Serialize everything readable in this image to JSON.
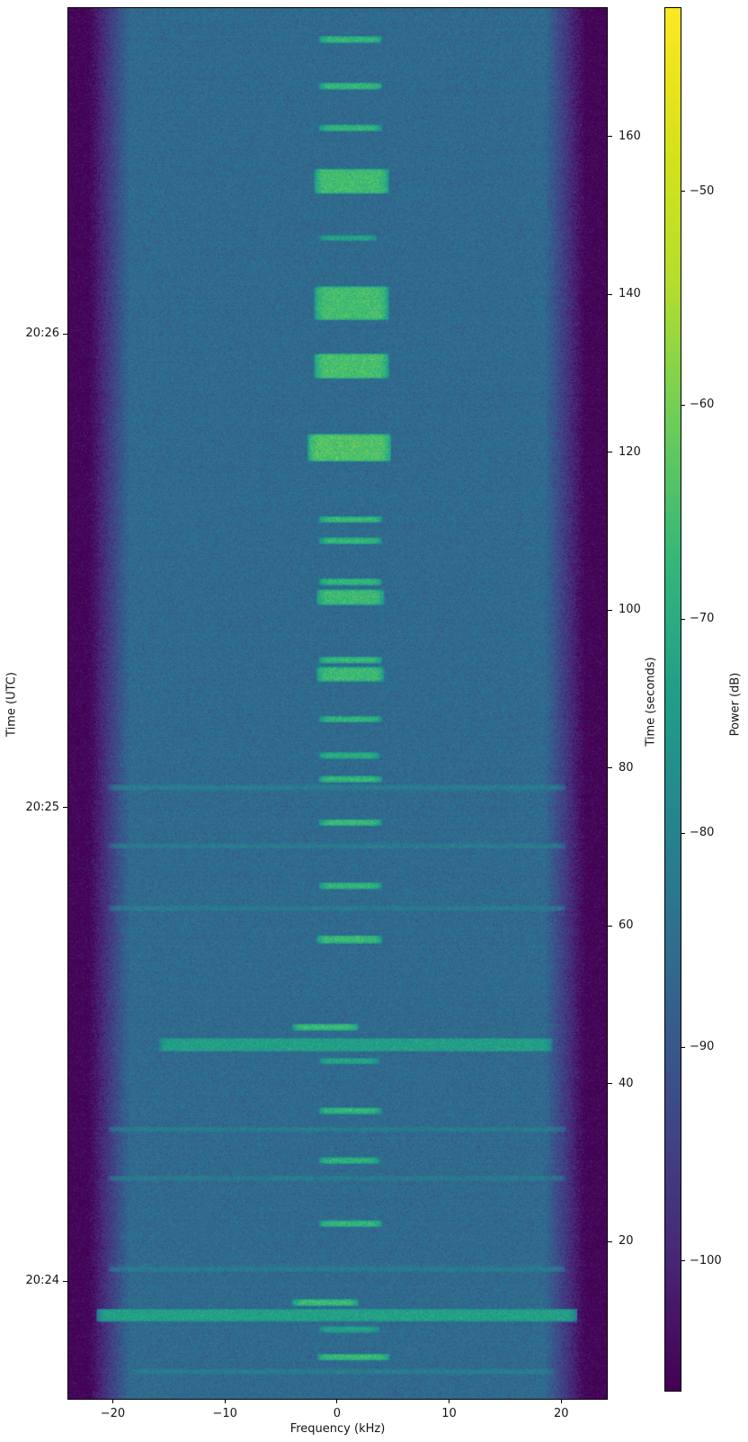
{
  "chart_data": {
    "type": "heatmap",
    "title": "",
    "xlabel": "Frequency (kHz)",
    "ylabel_left": "Time (UTC)",
    "ylabel_right": "Time (seconds)",
    "colorbar_label": "Power (dB)",
    "x_range_khz": [
      -24.05,
      24.15
    ],
    "x_ticks": [
      -20,
      -10,
      0,
      10,
      20
    ],
    "x_tick_labels": [
      "−20",
      "−10",
      "0",
      "10",
      "20"
    ],
    "t_range_seconds": [
      0,
      176.4
    ],
    "right_ticks_seconds": [
      20,
      40,
      60,
      80,
      100,
      120,
      140,
      160
    ],
    "right_tick_labels": [
      "20",
      "40",
      "60",
      "80",
      "100",
      "120",
      "140",
      "160"
    ],
    "utc_ticks": [
      {
        "label": "20:24",
        "t_seconds": 15
      },
      {
        "label": "20:25",
        "t_seconds": 75
      },
      {
        "label": "20:26",
        "t_seconds": 135
      }
    ],
    "color_scale": {
      "name": "viridis",
      "vmin_db": -106.1,
      "vmax_db": -41.4,
      "ticks_db": [
        -50,
        -60,
        -70,
        -80,
        -90,
        -100
      ],
      "tick_labels": [
        "−50",
        "−60",
        "−70",
        "−80",
        "−90",
        "−100"
      ],
      "stops": [
        "#440154",
        "#482878",
        "#3e4989",
        "#31688e",
        "#26828e",
        "#1f9e89",
        "#35b779",
        "#6dcd59",
        "#b4de2c",
        "#d8e219",
        "#fde725"
      ]
    },
    "background": {
      "noise_floor_db": -86,
      "edge_floor_db": -106,
      "rolloff_start_khz": 18.5,
      "rolloff_end_khz": 22.2,
      "noise_sigma_db": 2.4,
      "row_noise_sigma_db": 0.3
    },
    "events_format": [
      "t_start_s",
      "t_end_s",
      "f_low_khz",
      "f_high_khz",
      "power_db"
    ],
    "events": [
      [
        172.0,
        172.6,
        -1.2,
        3.6,
        -67.5
      ],
      [
        166.1,
        166.7,
        -1.2,
        3.6,
        -67.5
      ],
      [
        160.8,
        161.4,
        -1.2,
        3.6,
        -68.0
      ],
      [
        152.9,
        155.8,
        -1.6,
        4.2,
        -65.5
      ],
      [
        146.9,
        147.4,
        -1.2,
        3.2,
        -73.0
      ],
      [
        136.9,
        140.9,
        -1.6,
        4.2,
        -65.5
      ],
      [
        129.5,
        132.4,
        -1.6,
        4.2,
        -65.0
      ],
      [
        119.0,
        122.2,
        -2.2,
        4.4,
        -64.0
      ],
      [
        111.2,
        111.8,
        -1.2,
        3.6,
        -67.0
      ],
      [
        108.5,
        109.1,
        -1.2,
        3.6,
        -68.0
      ],
      [
        103.3,
        103.9,
        -1.2,
        3.6,
        -67.5
      ],
      [
        100.8,
        102.5,
        -1.4,
        3.8,
        -66.5
      ],
      [
        93.4,
        94.0,
        -1.2,
        3.6,
        -67.5
      ],
      [
        91.1,
        92.7,
        -1.4,
        3.8,
        -66.5
      ],
      [
        85.9,
        86.5,
        -1.2,
        3.6,
        -68.5
      ],
      [
        81.3,
        81.9,
        -1.2,
        3.4,
        -70.0
      ],
      [
        78.3,
        78.9,
        -1.2,
        3.6,
        -67.5
      ],
      [
        77.3,
        77.8,
        -20.0,
        20.0,
        -83.0
      ],
      [
        72.8,
        73.4,
        -1.2,
        3.6,
        -67.0
      ],
      [
        69.9,
        70.4,
        -20.0,
        20.0,
        -84.0
      ],
      [
        64.8,
        65.4,
        -1.2,
        3.6,
        -68.0
      ],
      [
        62.0,
        62.5,
        -20.0,
        20.0,
        -83.5
      ],
      [
        57.9,
        58.7,
        -1.4,
        3.6,
        -66.5
      ],
      [
        46.9,
        47.5,
        -3.6,
        1.5,
        -66.5
      ],
      [
        44.2,
        45.7,
        -15.5,
        18.8,
        -73.5
      ],
      [
        42.6,
        43.2,
        -1.2,
        3.4,
        -72.0
      ],
      [
        36.3,
        36.9,
        -1.2,
        3.6,
        -68.0
      ],
      [
        34.0,
        34.5,
        -20.0,
        20.0,
        -84.0
      ],
      [
        30.0,
        30.6,
        -1.2,
        3.4,
        -69.0
      ],
      [
        27.8,
        28.3,
        -20.0,
        20.0,
        -84.0
      ],
      [
        22.0,
        22.6,
        -1.2,
        3.6,
        -67.5
      ],
      [
        16.3,
        16.8,
        -20.0,
        20.0,
        -83.5
      ],
      [
        12.0,
        12.6,
        -3.6,
        1.5,
        -66.5
      ],
      [
        10.0,
        11.4,
        -21.0,
        21.0,
        -73.0
      ],
      [
        8.6,
        9.2,
        -1.2,
        3.4,
        -73.0
      ],
      [
        5.1,
        5.7,
        -1.3,
        4.3,
        -67.0
      ],
      [
        3.3,
        3.8,
        -18.0,
        19.0,
        -83.0
      ]
    ]
  }
}
